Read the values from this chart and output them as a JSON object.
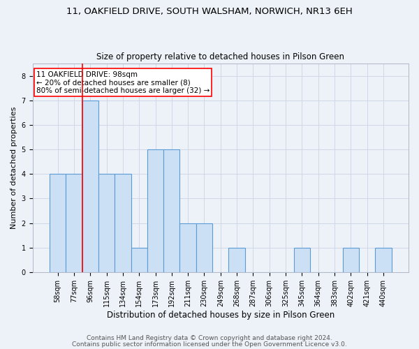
{
  "title_line1": "11, OAKFIELD DRIVE, SOUTH WALSHAM, NORWICH, NR13 6EH",
  "title_line2": "Size of property relative to detached houses in Pilson Green",
  "xlabel": "Distribution of detached houses by size in Pilson Green",
  "ylabel": "Number of detached properties",
  "categories": [
    "58sqm",
    "77sqm",
    "96sqm",
    "115sqm",
    "134sqm",
    "154sqm",
    "173sqm",
    "192sqm",
    "211sqm",
    "230sqm",
    "249sqm",
    "268sqm",
    "287sqm",
    "306sqm",
    "325sqm",
    "345sqm",
    "364sqm",
    "383sqm",
    "402sqm",
    "421sqm",
    "440sqm"
  ],
  "values": [
    4,
    4,
    7,
    4,
    4,
    1,
    5,
    5,
    2,
    2,
    0,
    1,
    0,
    0,
    0,
    1,
    0,
    0,
    1,
    0,
    1
  ],
  "bar_color": "#cce0f5",
  "bar_edge_color": "#5b9bd5",
  "redline_x": 1.5,
  "annotation_text": "11 OAKFIELD DRIVE: 98sqm\n← 20% of detached houses are smaller (8)\n80% of semi-detached houses are larger (32) →",
  "ylim": [
    0,
    8.5
  ],
  "yticks": [
    0,
    1,
    2,
    3,
    4,
    5,
    6,
    7,
    8
  ],
  "grid_color": "#d0d8e8",
  "background_color": "#edf2f9",
  "plot_bg_color": "#edf2f9",
  "footer_line1": "Contains HM Land Registry data © Crown copyright and database right 2024.",
  "footer_line2": "Contains public sector information licensed under the Open Government Licence v3.0.",
  "title_fontsize": 9.5,
  "subtitle_fontsize": 8.5,
  "xlabel_fontsize": 8.5,
  "ylabel_fontsize": 8,
  "tick_fontsize": 7,
  "annotation_fontsize": 7.5,
  "footer_fontsize": 6.5
}
